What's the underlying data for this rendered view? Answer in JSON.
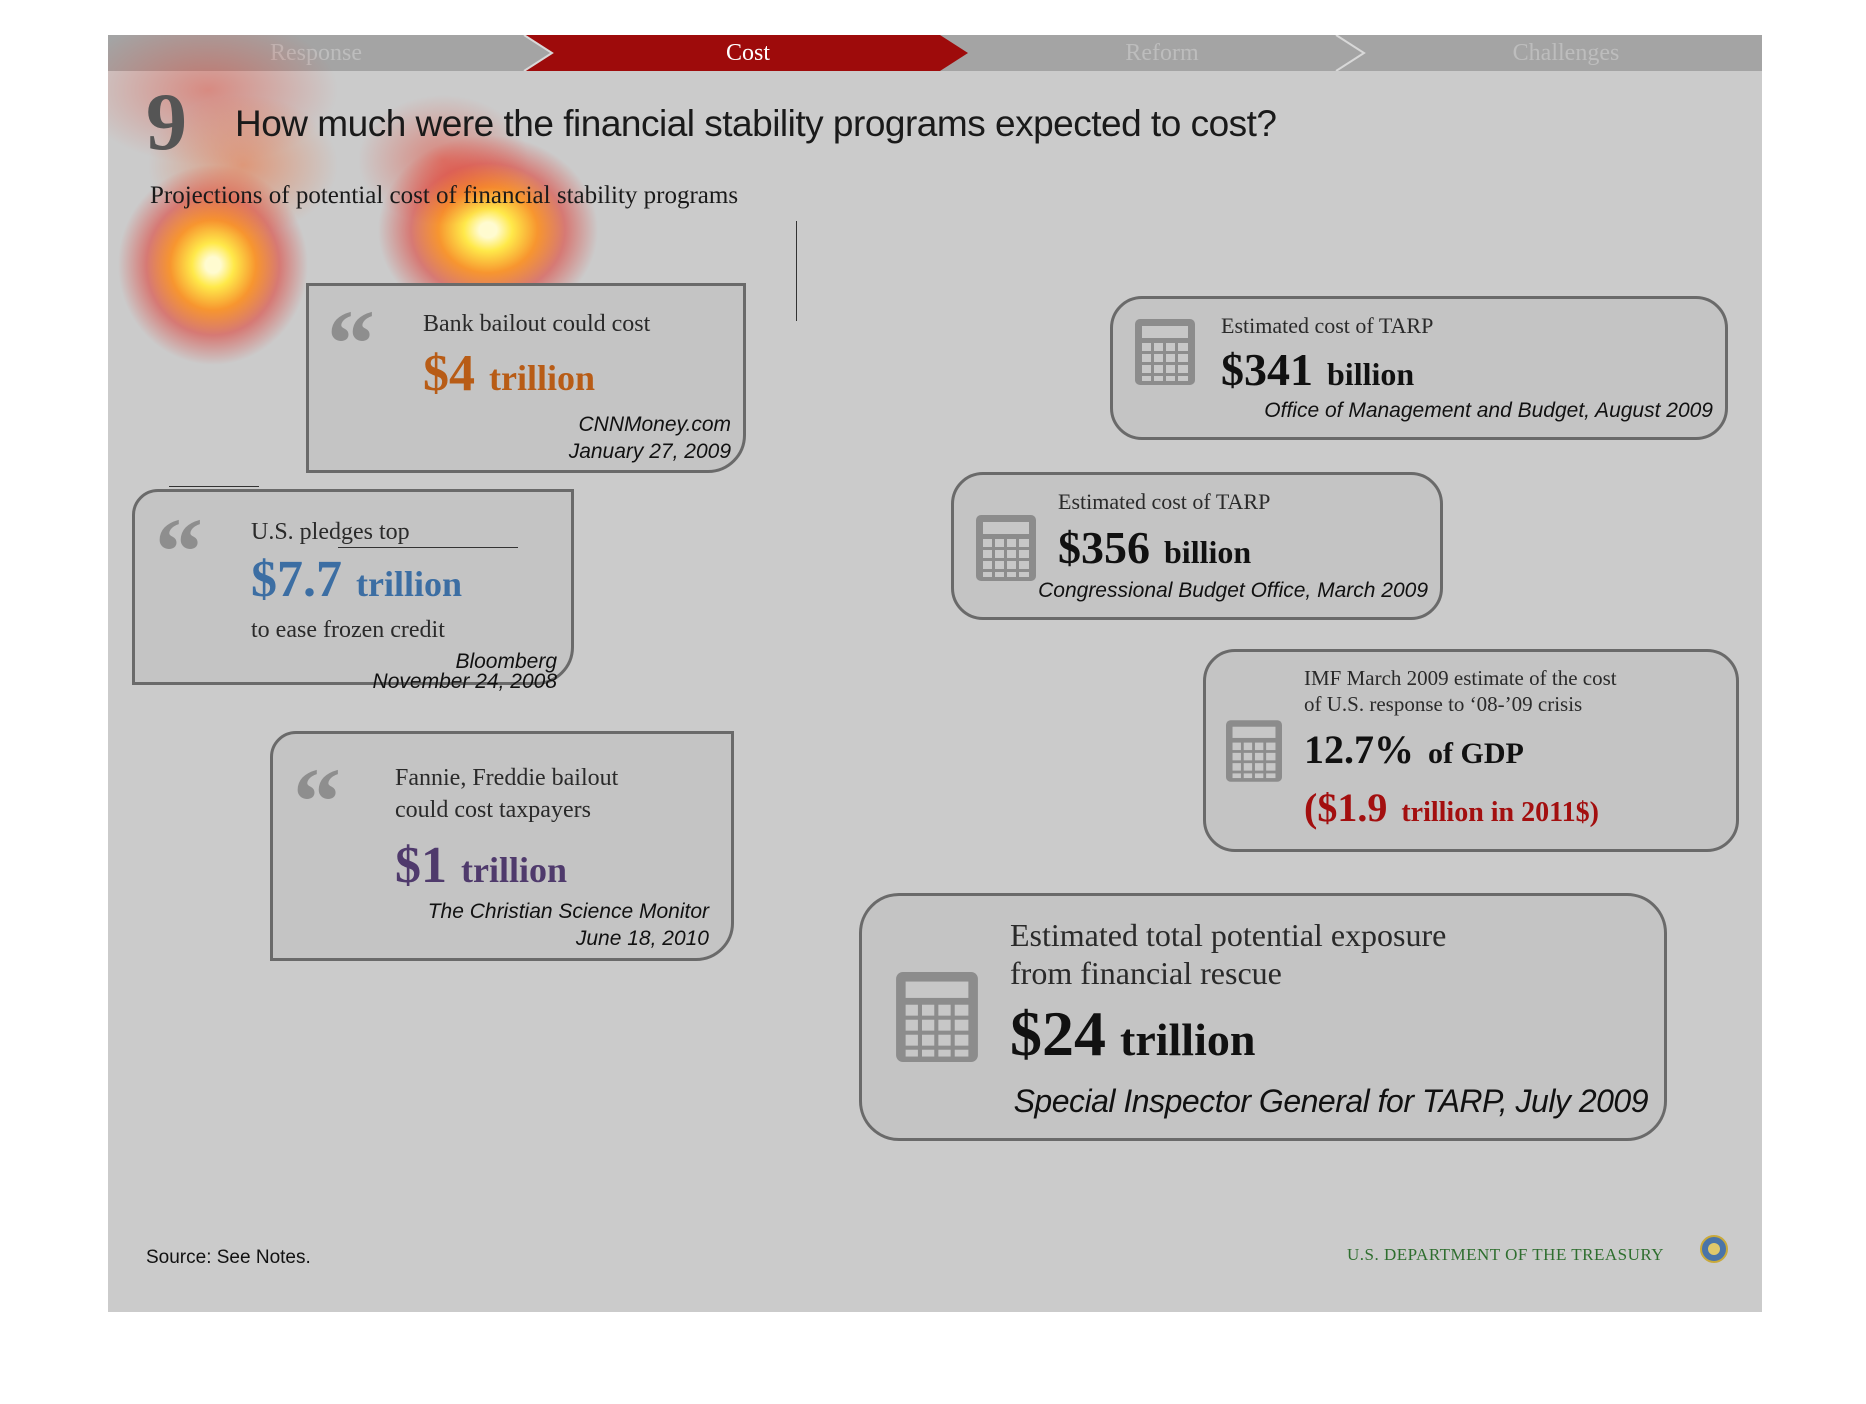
{
  "nav": {
    "tabs": [
      {
        "label": "Response",
        "active": false
      },
      {
        "label": "Cost",
        "active": true
      },
      {
        "label": "Reform",
        "active": false
      },
      {
        "label": "Challenges",
        "active": false
      }
    ],
    "active_color": "#9e0b0b"
  },
  "header": {
    "number": "9",
    "title": "How much were the financial stability programs expected to cost?",
    "subtitle": "Projections of potential cost of financial stability programs"
  },
  "quotes": [
    {
      "intro": "Bank bailout could cost",
      "amount": "$4",
      "unit": "trillion",
      "source": "CNNMoney.com",
      "date": "January 27, 2009",
      "color": "#b85c16"
    },
    {
      "intro": "U.S. pledges top",
      "amount": "$7.7",
      "unit": "trillion",
      "extra": "to ease frozen credit",
      "source": "Bloomberg",
      "date": "November 24, 2008",
      "color": "#3c6ea3"
    },
    {
      "intro_line1": "Fannie, Freddie bailout",
      "intro_line2": "could cost taxpayers",
      "amount": "$1",
      "unit": "trillion",
      "source": "The Christian Science Monitor",
      "date": "June 18, 2010",
      "color": "#4f3a6c"
    }
  ],
  "estimates": [
    {
      "label": "Estimated cost of TARP",
      "amount": "$341",
      "unit": "billion",
      "source": "Office of Management and Budget, August 2009"
    },
    {
      "label": "Estimated cost of TARP",
      "amount": "$356",
      "unit": "billion",
      "source": "Congressional Budget Office, March 2009"
    },
    {
      "label_line1": "IMF March 2009 estimate of the cost",
      "label_line2": "of U.S. response to ‘08-’09 crisis",
      "amount": "12.7%",
      "unit": "of GDP",
      "alt_amount": "($1.9",
      "alt_unit": "trillion in 2011$)",
      "alt_color": "#a30f0f"
    },
    {
      "label_line1": "Estimated total potential exposure",
      "label_line2": "from financial rescue",
      "amount": "$24",
      "unit": "trillion",
      "source": "Special Inspector General for TARP, July 2009"
    }
  ],
  "footer": {
    "source": "Source: See Notes.",
    "agency": "U.S. DEPARTMENT OF THE TREASURY"
  },
  "icons": {
    "quote": "quote-mark-icon",
    "calculator": "calculator-icon",
    "seal": "treasury-seal-icon"
  }
}
